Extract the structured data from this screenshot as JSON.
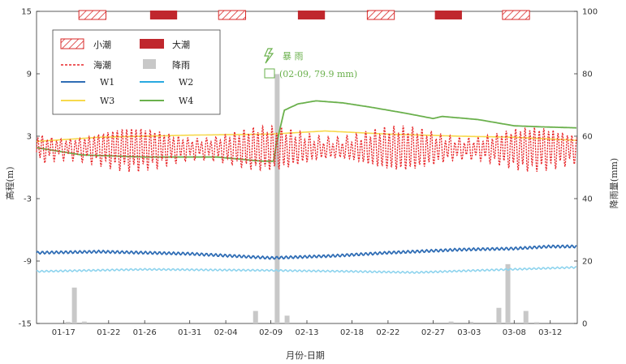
{
  "chart_data": {
    "type": "line",
    "xlabel": "月份-日期",
    "ylabel_left": "高程(m)",
    "ylabel_right": "降雨量(mm)",
    "ylim_left": [
      -15,
      15
    ],
    "ylim_right": [
      0,
      100
    ],
    "yticks_left": [
      "15",
      "9",
      "3",
      "-3",
      "-9",
      "-15"
    ],
    "yticks_right": [
      "100",
      "80",
      "60",
      "40",
      "20",
      "0"
    ],
    "x_tick_labels": [
      "01-17",
      "01-22",
      "01-26",
      "01-31",
      "02-04",
      "02-09",
      "02-13",
      "02-18",
      "02-22",
      "02-27",
      "03-03",
      "03-08",
      "03-12"
    ],
    "x_tick_days": [
      16,
      21,
      25,
      30,
      34,
      39,
      43,
      48,
      52,
      57,
      61,
      66,
      70
    ],
    "x_range_days": [
      13,
      73
    ],
    "tide_periods": [
      {
        "type": "neap",
        "start_day": 17.7,
        "end_day": 20.7
      },
      {
        "type": "spring",
        "start_day": 25.6,
        "end_day": 28.6
      },
      {
        "type": "neap",
        "start_day": 33.2,
        "end_day": 36.2
      },
      {
        "type": "spring",
        "start_day": 42.0,
        "end_day": 45.0
      },
      {
        "type": "neap",
        "start_day": 49.7,
        "end_day": 52.7
      },
      {
        "type": "spring",
        "start_day": 57.2,
        "end_day": 60.2
      },
      {
        "type": "neap",
        "start_day": 64.7,
        "end_day": 67.7
      }
    ],
    "legend": {
      "neap": "小潮",
      "spring": "大潮",
      "tide": "海潮",
      "rain": "降雨",
      "w1": "W1",
      "w2": "W2",
      "w3": "W3",
      "w4": "W4"
    },
    "annotation": {
      "title": "暴  雨",
      "label": "(02-09, 79.9 mm)"
    },
    "rainfall": [
      {
        "day": 16.5,
        "mm": 0.5
      },
      {
        "day": 17.2,
        "mm": 11.5
      },
      {
        "day": 18.3,
        "mm": 0.6
      },
      {
        "day": 37.3,
        "mm": 4.0
      },
      {
        "day": 39.7,
        "mm": 79.9
      },
      {
        "day": 40.8,
        "mm": 2.5
      },
      {
        "day": 59.0,
        "mm": 0.6
      },
      {
        "day": 61.2,
        "mm": 0.5
      },
      {
        "day": 64.3,
        "mm": 5.0
      },
      {
        "day": 65.3,
        "mm": 19.0
      },
      {
        "day": 67.3,
        "mm": 4.0
      },
      {
        "day": 68.5,
        "mm": 0.4
      }
    ],
    "series": [
      {
        "key": "tide",
        "name": "海潮",
        "color": "#e8272a",
        "style": "dotted",
        "mean": 1.8,
        "amp_min": 0.8,
        "amp_max": 1.9,
        "period_days": 0.52
      },
      {
        "key": "w1",
        "name": "W1",
        "color": "#2f6db5",
        "style": "solid",
        "points": [
          [
            13,
            -8.2
          ],
          [
            20,
            -8.1
          ],
          [
            30,
            -8.3
          ],
          [
            39,
            -8.7
          ],
          [
            46,
            -8.5
          ],
          [
            52,
            -8.2
          ],
          [
            60,
            -7.9
          ],
          [
            66,
            -7.8
          ],
          [
            70,
            -7.6
          ],
          [
            73,
            -7.6
          ]
        ]
      },
      {
        "key": "w2",
        "name": "W2",
        "color": "#8fd4ee",
        "style": "solid",
        "points": [
          [
            13,
            -10.0
          ],
          [
            25,
            -9.8
          ],
          [
            39,
            -9.9
          ],
          [
            48,
            -10.0
          ],
          [
            55,
            -10.1
          ],
          [
            62,
            -9.9
          ],
          [
            73,
            -9.6
          ]
        ]
      },
      {
        "key": "w3",
        "name": "W3",
        "color": "#f7d94c",
        "style": "solid",
        "points": [
          [
            13,
            2.5
          ],
          [
            20,
            2.9
          ],
          [
            30,
            3.1
          ],
          [
            39,
            3.2
          ],
          [
            45,
            3.5
          ],
          [
            52,
            3.2
          ],
          [
            60,
            3.0
          ],
          [
            66,
            2.9
          ],
          [
            73,
            2.6
          ]
        ]
      },
      {
        "key": "w4",
        "name": "W4",
        "color": "#6ab04c",
        "style": "solid",
        "points": [
          [
            13,
            1.9
          ],
          [
            18,
            1.2
          ],
          [
            25,
            1.0
          ],
          [
            33,
            1.0
          ],
          [
            38,
            0.6
          ],
          [
            39.3,
            0.6
          ],
          [
            39.6,
            2.2
          ],
          [
            40.5,
            5.5
          ],
          [
            42,
            6.1
          ],
          [
            44,
            6.4
          ],
          [
            47,
            6.2
          ],
          [
            50,
            5.8
          ],
          [
            54,
            5.2
          ],
          [
            57,
            4.7
          ],
          [
            58,
            4.9
          ],
          [
            62,
            4.6
          ],
          [
            66,
            4.0
          ],
          [
            69,
            3.9
          ],
          [
            73,
            3.8
          ]
        ]
      }
    ]
  }
}
